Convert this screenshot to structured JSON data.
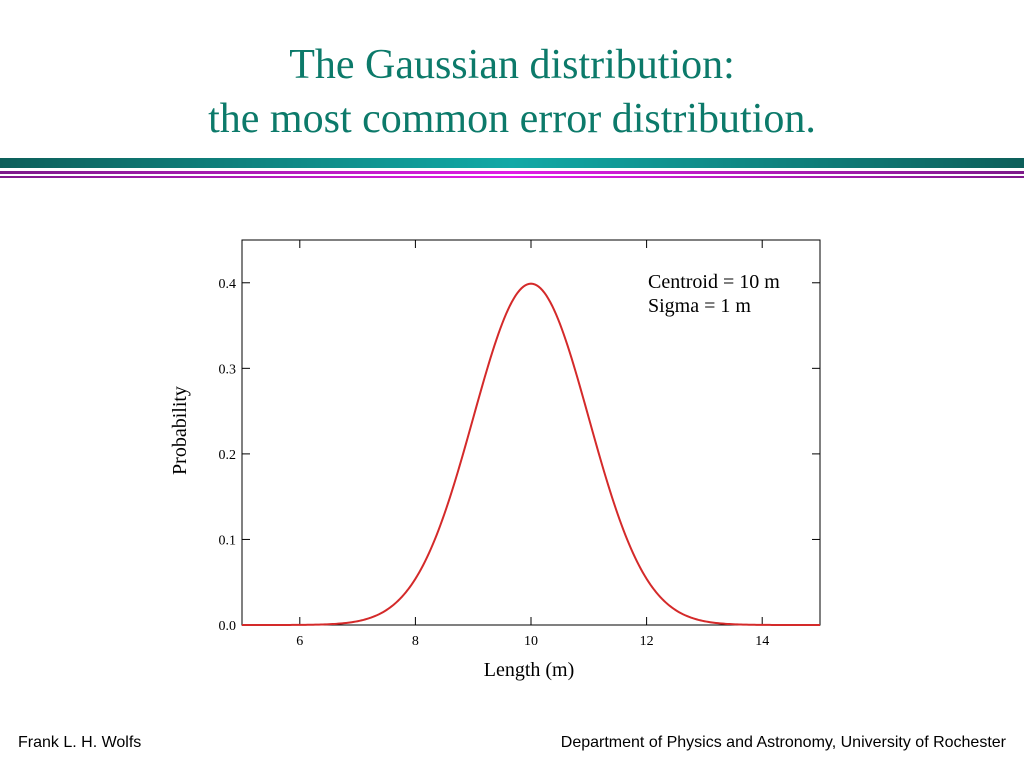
{
  "slide": {
    "title_line1": "The Gaussian distribution:",
    "title_line2": "the most common error distribution."
  },
  "footer": {
    "left": "Frank L. H. Wolfs",
    "right": "Department of Physics and Astronomy, University of Rochester"
  },
  "colors": {
    "title": "#0c7a6a",
    "curve": "#d42a2a",
    "rule_teal": "#11a9a6",
    "rule_magenta": "#e01fe6"
  },
  "chart_data": {
    "type": "line",
    "title": "",
    "xlabel": "Length (m)",
    "ylabel": "Probability",
    "xlim": [
      5,
      15
    ],
    "ylim": [
      0,
      0.45
    ],
    "x_ticks": [
      6,
      8,
      10,
      12,
      14
    ],
    "x_tick_labels": [
      "6",
      "8",
      "10",
      "12",
      "14"
    ],
    "y_ticks": [
      0,
      0.1,
      0.2,
      0.3,
      0.4
    ],
    "y_tick_labels": [
      "0.0",
      "0.1",
      "0.2",
      "0.3",
      "0.4"
    ],
    "grid": false,
    "annotations": [
      "Centroid = 10 m",
      "Sigma = 1 m"
    ],
    "series": [
      {
        "x": [
          5,
          5.5,
          6,
          6.5,
          7,
          7.25,
          7.5,
          7.75,
          8,
          8.25,
          8.5,
          8.75,
          9,
          9.25,
          9.5,
          9.75,
          10,
          10.25,
          10.5,
          10.75,
          11,
          11.25,
          11.5,
          11.75,
          12,
          12.25,
          12.5,
          12.75,
          13,
          13.5,
          14,
          14.5,
          15
        ],
        "y": [
          0.0,
          0.0,
          0.0001,
          0.0009,
          0.0044,
          0.0091,
          0.0175,
          0.0317,
          0.054,
          0.0863,
          0.1295,
          0.1826,
          0.242,
          0.3011,
          0.3521,
          0.3867,
          0.3989,
          0.3867,
          0.3521,
          0.3011,
          0.242,
          0.1826,
          0.1295,
          0.0863,
          0.054,
          0.0317,
          0.0175,
          0.0091,
          0.0044,
          0.0009,
          0.0001,
          0.0,
          0.0
        ]
      }
    ]
  }
}
